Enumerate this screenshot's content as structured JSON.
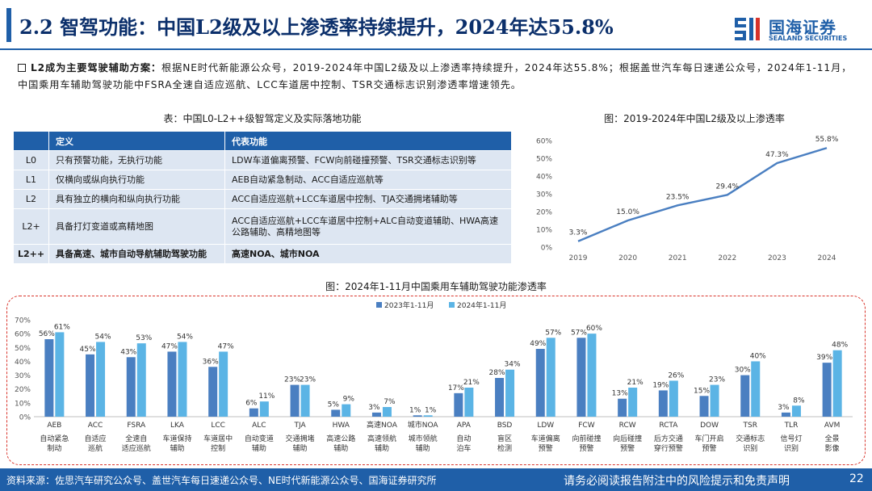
{
  "header": {
    "title": "2.2 智驾功能：中国L2级及以上渗透率持续提升，2024年达55.8%",
    "logo_cn": "国海证券",
    "logo_en": "SEALAND SECURITIES"
  },
  "intro": {
    "lead": "L2成为主要驾驶辅助方案：",
    "body": "根据NE时代新能源公众号，2019-2024年中国L2级及以上渗透率持续提升，2024年达55.8%；根据盖世汽车每日速递公众号，2024年1-11月，中国乘用车辅助驾驶功能中FSRA全速自适应巡航、LCC车道居中控制、TSR交通标志识别渗透率增速领先。"
  },
  "table": {
    "title": "表：中国L0-L2++级智驾定义及实际落地功能",
    "headers": [
      "",
      "定义",
      "代表功能"
    ],
    "rows": [
      {
        "level": "L0",
        "definition": "只有预警功能，无执行功能",
        "functions": "LDW车道偏离预警、FCW向前碰撞预警、TSR交通标志识别等"
      },
      {
        "level": "L1",
        "definition": "仅横向或纵向执行功能",
        "functions": "AEB自动紧急制动、ACC自适应巡航等"
      },
      {
        "level": "L2",
        "definition": "具有独立的横向和纵向执行功能",
        "functions": "ACC自适应巡航+LCC车道居中控制、TJA交通拥堵辅助等"
      },
      {
        "level": "L2+",
        "definition": "具备打灯变道或高精地图",
        "functions": "ACC自适应巡航+LCC车道居中控制+ALC自动变道辅助、HWA高速公路辅助、高精地图等"
      },
      {
        "level": "L2++",
        "definition": "具备高速、城市自动导航辅助驾驶功能",
        "functions": "高速NOA、城市NOA"
      }
    ]
  },
  "line_chart": {
    "title": "图：2019-2024年中国L2级及以上渗透率",
    "color": "#4a7fc1"
  },
  "bar_chart": {
    "title": "图：2024年1-11月中国乘用车辅助驾驶功能渗透率",
    "colors": [
      "#4a7fc1",
      "#5bb4e5"
    ]
  },
  "chart_data": [
    {
      "type": "line",
      "x": [
        "2019",
        "2020",
        "2021",
        "2022",
        "2023",
        "2024"
      ],
      "series": [
        {
          "values": [
            3.3,
            15.0,
            23.5,
            29.4,
            47.3,
            55.8
          ]
        }
      ],
      "data_labels": [
        "3.3%",
        "15.0%",
        "23.5%",
        "29.4%",
        "47.3%",
        "55.8%"
      ],
      "ylim": [
        0,
        60
      ],
      "yticks": [
        "0%",
        "10%",
        "20%",
        "30%",
        "40%",
        "50%",
        "60%"
      ],
      "grid": false
    },
    {
      "type": "bar",
      "categories": [
        "AEB",
        "ACC",
        "FSRA",
        "LKA",
        "LCC",
        "ALC",
        "TJA",
        "HWA",
        "高速NOA",
        "城市NOA",
        "APA",
        "BSD",
        "LDW",
        "FCW",
        "RCW",
        "RCTA",
        "DOW",
        "TSR",
        "TLR",
        "AVM"
      ],
      "category_desc": [
        "自动紧急制动",
        "自适应巡航",
        "全速自适应巡航",
        "车道保持辅助",
        "车道居中控制",
        "自动变道辅助",
        "交通拥堵辅助",
        "高速公路辅助",
        "高速领航辅助",
        "城市领航辅助",
        "自动泊车",
        "盲区检测",
        "车道偏离预警",
        "向前碰撞预警",
        "向后碰撞预警",
        "后方交通穿行预警",
        "车门开启预警",
        "交通标志识别",
        "信号灯识别",
        "全景影像"
      ],
      "series": [
        {
          "name": "2023年1-11月",
          "values": [
            56,
            45,
            43,
            47,
            36,
            6,
            23,
            5,
            3,
            1,
            17,
            28,
            49,
            57,
            13,
            19,
            15,
            30,
            3,
            39
          ]
        },
        {
          "name": "2024年1-11月",
          "values": [
            61,
            54,
            53,
            54,
            47,
            11,
            23,
            9,
            7,
            1,
            21,
            34,
            57,
            60,
            21,
            26,
            23,
            40,
            8,
            48
          ]
        }
      ],
      "ylim": [
        0,
        70
      ],
      "yticks": [
        "0%",
        "10%",
        "20%",
        "30%",
        "40%",
        "50%",
        "60%",
        "70%"
      ],
      "legend": "top-center",
      "grid": false
    }
  ],
  "footer": {
    "source": "资料来源：佐思汽车研究公众号、盖世汽车每日速递公众号、NE时代新能源公众号、国海证券研究所",
    "disclaimer": "请务必阅读报告附注中的风险提示和免责声明",
    "page": "22"
  }
}
